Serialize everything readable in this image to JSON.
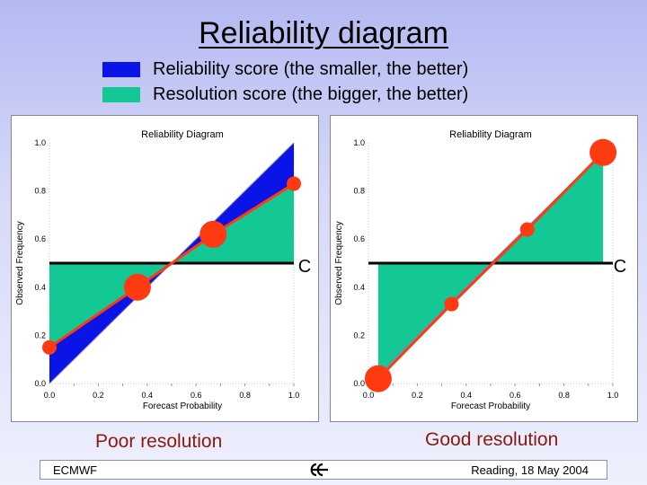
{
  "slide": {
    "title": "Reliability diagram",
    "legend": [
      {
        "label": "Reliability score (the smaller, the better)",
        "color": "#0a14e6"
      },
      {
        "label": "Resolution score (the bigger, the better)",
        "color": "#14c896"
      }
    ],
    "captions": {
      "left": "Poor resolution",
      "right": "Good resolution"
    },
    "footer": {
      "left": "ECMWF",
      "right": "Reading, 18 May 2004"
    },
    "colors": {
      "reliability": "#0a14e6",
      "resolution": "#14c896",
      "forecast_line": "#ff3a10",
      "climatology": "#000000"
    }
  },
  "chart_data": [
    {
      "type": "line",
      "title": "Reliability Diagram",
      "xlabel": "Forecast Probability",
      "ylabel": "Observed Frequency",
      "xlim": [
        0,
        1
      ],
      "ylim": [
        0,
        1
      ],
      "xticks": [
        "0.0",
        "0.2",
        "0.4",
        "0.6",
        "0.8",
        "1.0"
      ],
      "yticks": [
        "0.0",
        "0.2",
        "0.4",
        "0.6",
        "0.8",
        "1.0"
      ],
      "climatology_label": "C",
      "climatology": 0.5,
      "series": [
        {
          "x": [
            0.0,
            0.36,
            0.67,
            1.0
          ],
          "y": [
            0.15,
            0.4,
            0.62,
            0.83
          ]
        }
      ]
    },
    {
      "type": "line",
      "title": "Reliability Diagram",
      "xlabel": "Forecast Probability",
      "ylabel": "Observed Frequency",
      "xlim": [
        0,
        1
      ],
      "ylim": [
        0,
        1
      ],
      "xticks": [
        "0.0",
        "0.2",
        "0.4",
        "0.6",
        "0.8",
        "1.0"
      ],
      "yticks": [
        "0.0",
        "0.2",
        "0.4",
        "0.6",
        "0.8",
        "1.0"
      ],
      "climatology_label": "C",
      "climatology": 0.5,
      "series": [
        {
          "x": [
            0.04,
            0.34,
            0.65,
            0.96
          ],
          "y": [
            0.02,
            0.33,
            0.64,
            0.96
          ]
        }
      ]
    }
  ]
}
